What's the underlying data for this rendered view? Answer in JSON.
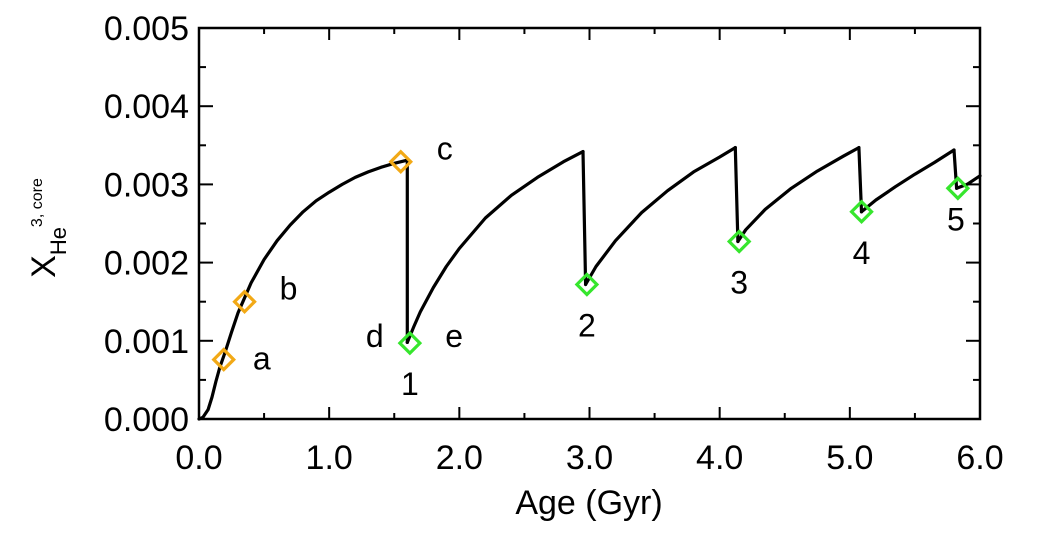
{
  "chart_data": {
    "type": "line",
    "xlabel": "Age (Gyr)",
    "ylabel": {
      "base": "X",
      "sub": "He",
      "sup": "3, core"
    },
    "xlim": [
      0.0,
      6.0
    ],
    "ylim": [
      0.0,
      0.005
    ],
    "xticks": [
      "0.0",
      "1.0",
      "2.0",
      "3.0",
      "4.0",
      "5.0",
      "6.0"
    ],
    "xtick_values": [
      0,
      1,
      2,
      3,
      4,
      5,
      6
    ],
    "yticks": [
      "0.000",
      "0.001",
      "0.002",
      "0.003",
      "0.004",
      "0.005"
    ],
    "ytick_values": [
      0,
      0.001,
      0.002,
      0.003,
      0.004,
      0.005
    ],
    "grid": false,
    "series": [
      {
        "color": "#000000",
        "segments": [
          {
            "x": [
              0.0,
              0.03,
              0.07,
              0.1,
              0.13,
              0.16,
              0.2,
              0.25,
              0.3,
              0.35,
              0.4,
              0.5,
              0.6,
              0.7,
              0.8,
              0.9,
              1.0,
              1.1,
              1.2,
              1.3,
              1.4,
              1.5,
              1.6
            ],
            "y": [
              0.0,
              2e-05,
              0.00012,
              0.00028,
              0.00048,
              0.00066,
              0.00085,
              0.00111,
              0.00136,
              0.00155,
              0.00174,
              0.00204,
              0.00228,
              0.00248,
              0.00265,
              0.00279,
              0.0029,
              0.003,
              0.00309,
              0.00316,
              0.00322,
              0.00327,
              0.00331
            ]
          },
          {
            "x": [
              1.6,
              1.6
            ],
            "y": [
              0.00331,
              0.00098
            ]
          },
          {
            "x": [
              1.6,
              1.65,
              1.7,
              1.8,
              1.9,
              2.0,
              2.2,
              2.4,
              2.6,
              2.8,
              2.95
            ],
            "y": [
              0.00098,
              0.00118,
              0.00137,
              0.00168,
              0.00195,
              0.00218,
              0.00257,
              0.00286,
              0.00309,
              0.00329,
              0.00342
            ]
          },
          {
            "x": [
              2.95,
              2.97
            ],
            "y": [
              0.00342,
              0.00172
            ]
          },
          {
            "x": [
              2.97,
              3.05,
              3.2,
              3.4,
              3.6,
              3.8,
              4.0,
              4.12
            ],
            "y": [
              0.00172,
              0.00195,
              0.00228,
              0.00264,
              0.00292,
              0.00316,
              0.00335,
              0.00347
            ]
          },
          {
            "x": [
              4.12,
              4.14
            ],
            "y": [
              0.00347,
              0.00227
            ]
          },
          {
            "x": [
              4.14,
              4.2,
              4.35,
              4.55,
              4.75,
              4.95,
              5.07
            ],
            "y": [
              0.00227,
              0.00242,
              0.00268,
              0.00295,
              0.00317,
              0.00336,
              0.00347
            ]
          },
          {
            "x": [
              5.07,
              5.09
            ],
            "y": [
              0.00347,
              0.00265
            ]
          },
          {
            "x": [
              5.09,
              5.2,
              5.35,
              5.5,
              5.65,
              5.8
            ],
            "y": [
              0.00265,
              0.0028,
              0.00297,
              0.00313,
              0.00328,
              0.00344
            ]
          },
          {
            "x": [
              5.8,
              5.82
            ],
            "y": [
              0.00344,
              0.00295
            ]
          },
          {
            "x": [
              5.82,
              5.9,
              6.0
            ],
            "y": [
              0.00295,
              0.003,
              0.00311
            ]
          }
        ]
      }
    ],
    "markers": [
      {
        "label": "a",
        "x": 0.19,
        "y": 0.00076,
        "color": "#f2a916",
        "label_pos": "right"
      },
      {
        "label": "b",
        "x": 0.35,
        "y": 0.0015,
        "color": "#f2a916",
        "label_pos": "upper-right"
      },
      {
        "label": "c",
        "x": 1.55,
        "y": 0.00329,
        "color": "#f2a916",
        "label_pos": "upper-right"
      },
      {
        "label": "1",
        "x": 1.62,
        "y": 0.00097,
        "color": "#36e62d",
        "label_pos": "below"
      },
      {
        "label": "2",
        "x": 2.98,
        "y": 0.00172,
        "color": "#36e62d",
        "label_pos": "below"
      },
      {
        "label": "3",
        "x": 4.15,
        "y": 0.00227,
        "color": "#36e62d",
        "label_pos": "below"
      },
      {
        "label": "4",
        "x": 5.09,
        "y": 0.00265,
        "color": "#36e62d",
        "label_pos": "below"
      },
      {
        "label": "5",
        "x": 5.83,
        "y": 0.00295,
        "color": "#36e62d",
        "label_pos": "below-left"
      }
    ],
    "annotations": [
      {
        "text": "d",
        "x": 1.35,
        "y": 0.00097
      },
      {
        "text": "e",
        "x": 1.96,
        "y": 0.00097
      }
    ]
  }
}
